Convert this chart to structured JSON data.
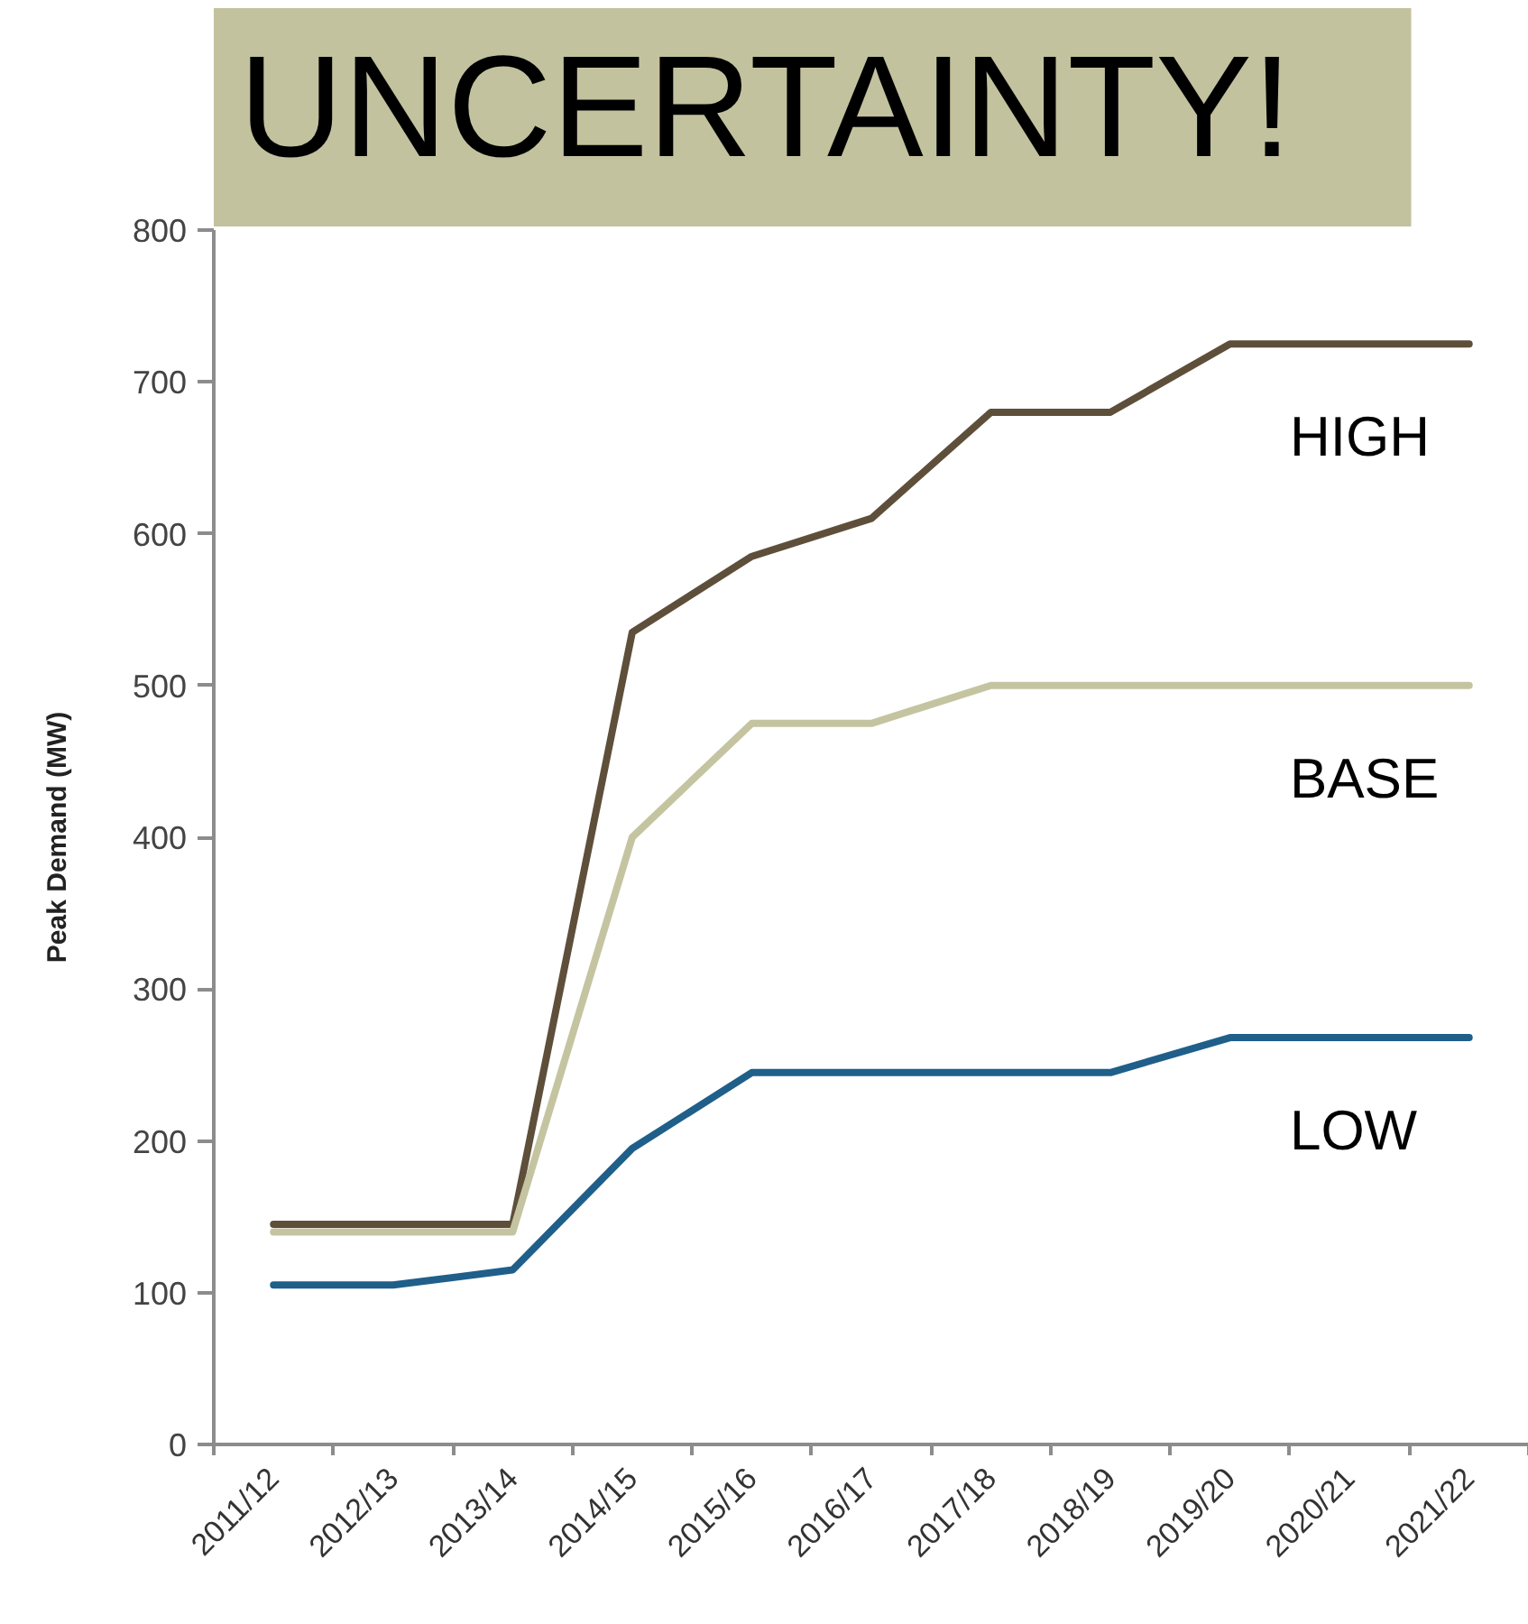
{
  "chart_data": {
    "type": "line",
    "title": "UNCERTAINTY!",
    "ylabel": "Peak Demand (MW)",
    "categories": [
      "2011/12",
      "2012/13",
      "2013/14",
      "2014/15",
      "2015/16",
      "2016/17",
      "2017/18",
      "2018/19",
      "2019/20",
      "2020/21",
      "2021/22"
    ],
    "ylim": [
      0,
      800
    ],
    "yticks": [
      0,
      100,
      200,
      300,
      400,
      500,
      600,
      700,
      800
    ],
    "grid": false,
    "series": [
      {
        "name": "HIGH",
        "color": "#5e4f3b",
        "values": [
          145,
          145,
          145,
          535,
          585,
          610,
          680,
          680,
          725,
          725,
          725
        ]
      },
      {
        "name": "BASE",
        "color": "#c5c4a1",
        "values": [
          140,
          140,
          140,
          400,
          475,
          475,
          500,
          500,
          500,
          500,
          500
        ]
      },
      {
        "name": "LOW",
        "color": "#1f5f8a",
        "values": [
          105,
          105,
          115,
          195,
          245,
          245,
          245,
          245,
          268,
          268,
          268
        ]
      }
    ]
  }
}
